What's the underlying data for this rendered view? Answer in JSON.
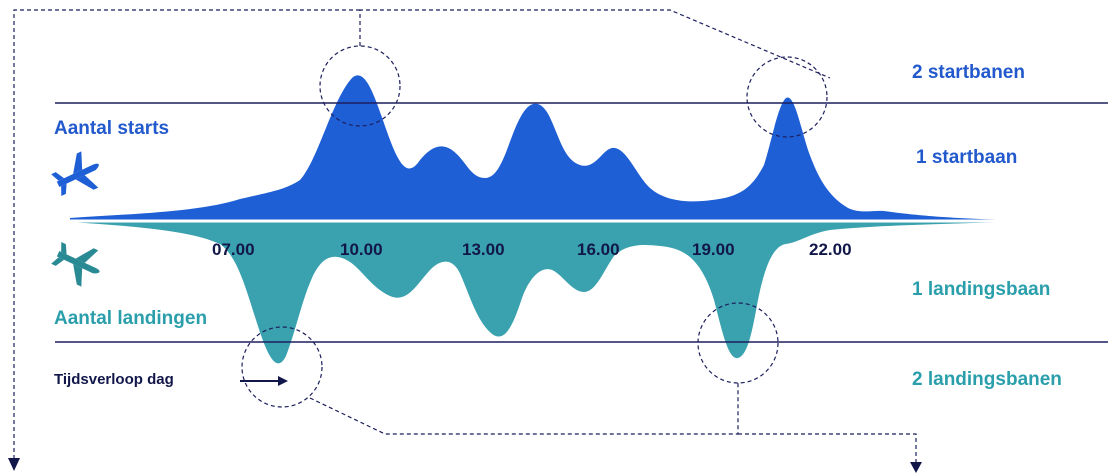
{
  "labels": {
    "starts": "Aantal starts",
    "landings": "Aantal landingen",
    "time_flow": "Tijdsverloop dag",
    "two_runways_start": "2 startbanen",
    "one_runway_start": "1 startbaan",
    "one_runway_land": "1 landingsbaan",
    "two_runways_land": "2 landingsbanen"
  },
  "time_ticks": [
    "07.00",
    "10.00",
    "13.00",
    "16.00",
    "19.00",
    "22.00"
  ],
  "icons": {
    "departure": "airplane-departure-icon",
    "arrival": "airplane-arrival-icon"
  },
  "colors": {
    "starts": "#1f5fd6",
    "landings": "#3aa1ae",
    "reference_lines": "#1c1f5e",
    "connector": "#1c1f5e"
  }
}
